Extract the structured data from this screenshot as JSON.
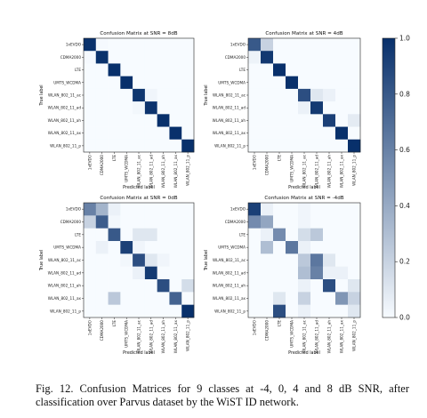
{
  "figure": {
    "caption": "Fig. 12.  Confusion Matrices for 9 classes at -4, 0, 4 and 8 dB SNR, after classification over Parvus dataset by the WiST ID network."
  },
  "colorbar": {
    "ticks": [
      {
        "value": 0.0,
        "label": "0.0"
      },
      {
        "value": 0.2,
        "label": "0.2"
      },
      {
        "value": 0.4,
        "label": "0.4"
      },
      {
        "value": 0.6,
        "label": "0.6"
      },
      {
        "value": 0.8,
        "label": "0.8"
      },
      {
        "value": 1.0,
        "label": "1.0"
      }
    ],
    "colors": {
      "low": "#f7fbff",
      "high": "#08306b"
    }
  },
  "chart_data": [
    {
      "type": "heatmap",
      "title": "Confusion Matrix at SNR = 8dB",
      "xlabel": "Predicted label",
      "ylabel": "True label",
      "labels": [
        "1xEVDO",
        "CDMA2000",
        "LTE",
        "UMTS_WCDMA",
        "WLAN_802_11_ac",
        "WLAN_802_11_ad",
        "WLAN_802_11_ah",
        "WLAN_802_11_ax",
        "WLAN_802_11_p"
      ],
      "matrix": [
        [
          0.99,
          0.01,
          0,
          0,
          0,
          0,
          0,
          0,
          0
        ],
        [
          0.01,
          0.99,
          0,
          0,
          0,
          0,
          0,
          0,
          0
        ],
        [
          0,
          0,
          1.0,
          0,
          0,
          0,
          0,
          0,
          0
        ],
        [
          0,
          0,
          0,
          1.0,
          0,
          0,
          0,
          0,
          0
        ],
        [
          0,
          0,
          0,
          0,
          0.97,
          0.03,
          0,
          0,
          0
        ],
        [
          0,
          0,
          0,
          0,
          0.02,
          0.98,
          0,
          0,
          0
        ],
        [
          0,
          0,
          0,
          0,
          0,
          0,
          1.0,
          0,
          0
        ],
        [
          0,
          0,
          0,
          0,
          0,
          0,
          0,
          1.0,
          0
        ],
        [
          0,
          0,
          0,
          0,
          0,
          0,
          0,
          0,
          1.0
        ]
      ]
    },
    {
      "type": "heatmap",
      "title": "Confusion Matrix at SNR = 4dB",
      "xlabel": "Predicted label",
      "ylabel": "True label",
      "labels": [
        "1xEVDO",
        "CDMA2000",
        "LTE",
        "UMTS_WCDMA",
        "WLAN_802_11_ac",
        "WLAN_802_11_ad",
        "WLAN_802_11_ah",
        "WLAN_802_11_ax",
        "WLAN_802_11_p"
      ],
      "matrix": [
        [
          0.8,
          0.2,
          0,
          0,
          0,
          0,
          0,
          0,
          0
        ],
        [
          0.04,
          0.96,
          0,
          0,
          0,
          0,
          0,
          0,
          0
        ],
        [
          0,
          0,
          1.0,
          0,
          0,
          0,
          0,
          0,
          0
        ],
        [
          0,
          0,
          0,
          1.0,
          0,
          0,
          0,
          0,
          0
        ],
        [
          0,
          0,
          0,
          0,
          0.85,
          0.1,
          0.05,
          0,
          0
        ],
        [
          0,
          0,
          0,
          0,
          0.05,
          0.95,
          0,
          0,
          0
        ],
        [
          0,
          0,
          0,
          0,
          0,
          0,
          0.92,
          0,
          0.08
        ],
        [
          0,
          0,
          0,
          0,
          0,
          0,
          0,
          1.0,
          0
        ],
        [
          0,
          0,
          0,
          0,
          0,
          0,
          0,
          0,
          1.0
        ]
      ]
    },
    {
      "type": "heatmap",
      "title": "Confusion Matrix at SNR = 0dB",
      "xlabel": "Predicted label",
      "ylabel": "True label",
      "labels": [
        "1xEVDO",
        "CDMA2000",
        "LTE",
        "UMTS_WCDMA",
        "WLAN_802_11_ac",
        "WLAN_802_11_ad",
        "WLAN_802_11_ah",
        "WLAN_802_11_ax",
        "WLAN_802_11_p"
      ],
      "matrix": [
        [
          0.6,
          0.35,
          0.05,
          0,
          0,
          0,
          0,
          0,
          0
        ],
        [
          0.2,
          0.78,
          0.02,
          0,
          0,
          0,
          0,
          0,
          0
        ],
        [
          0,
          0,
          0.8,
          0,
          0.1,
          0.1,
          0,
          0,
          0
        ],
        [
          0,
          0.05,
          0,
          0.92,
          0.03,
          0,
          0,
          0,
          0
        ],
        [
          0,
          0,
          0,
          0.02,
          0.85,
          0.1,
          0.03,
          0,
          0
        ],
        [
          0,
          0,
          0,
          0,
          0.05,
          0.95,
          0,
          0,
          0
        ],
        [
          0,
          0,
          0,
          0,
          0,
          0,
          0.85,
          0,
          0.15
        ],
        [
          0,
          0,
          0.25,
          0,
          0,
          0,
          0,
          0.75,
          0
        ],
        [
          0,
          0,
          0,
          0,
          0,
          0,
          0,
          0,
          1.0
        ]
      ]
    },
    {
      "type": "heatmap",
      "title": "Confusion Matrix at SNR = -4dB",
      "xlabel": "Predicted label",
      "ylabel": "True label",
      "labels": [
        "1xEVDO",
        "CDMA2000",
        "LTE",
        "UMTS_WCDMA",
        "WLAN_802_11_ac",
        "WLAN_802_11_ad",
        "WLAN_802_11_ah",
        "WLAN_802_11_ax",
        "WLAN_802_11_p"
      ],
      "matrix": [
        [
          0.92,
          0.05,
          0,
          0,
          0.03,
          0,
          0,
          0,
          0
        ],
        [
          0.55,
          0.42,
          0,
          0,
          0.03,
          0,
          0,
          0,
          0
        ],
        [
          0,
          0.05,
          0.55,
          0,
          0.15,
          0.25,
          0,
          0,
          0
        ],
        [
          0,
          0.3,
          0,
          0.65,
          0.05,
          0,
          0,
          0,
          0
        ],
        [
          0,
          0,
          0,
          0,
          0.25,
          0.65,
          0.1,
          0,
          0
        ],
        [
          0,
          0,
          0,
          0,
          0.3,
          0.6,
          0.05,
          0.05,
          0
        ],
        [
          0,
          0,
          0,
          0,
          0.05,
          0,
          0.85,
          0,
          0.1
        ],
        [
          0,
          0,
          0.1,
          0,
          0.2,
          0,
          0,
          0.5,
          0.2
        ],
        [
          0,
          0,
          0.85,
          0,
          0.05,
          0,
          0,
          0,
          0.1
        ]
      ]
    }
  ]
}
